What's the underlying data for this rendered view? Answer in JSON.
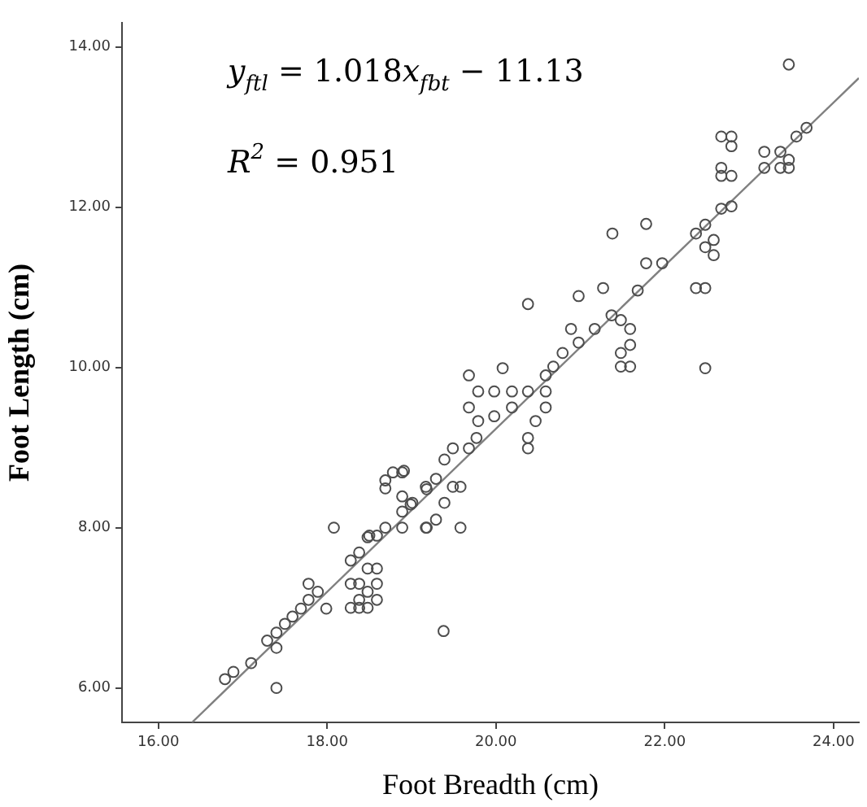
{
  "chart_data": {
    "type": "scatter",
    "xlabel": "Foot Breadth (cm)",
    "ylabel": "Foot Length (cm)",
    "annotations": [
      "y$_{ftl}$ = 1.018x$_{fbt}$ − 11.13",
      "R$^{2}$ = 0.951"
    ],
    "xlim": [
      15.57,
      24.3
    ],
    "ylim": [
      5.57,
      14.3
    ],
    "xticks": [
      {
        "value": 16,
        "label": "16.00"
      },
      {
        "value": 18,
        "label": "18.00"
      },
      {
        "value": 20,
        "label": "20.00"
      },
      {
        "value": 22,
        "label": "22.00"
      },
      {
        "value": 24,
        "label": "24.00"
      }
    ],
    "yticks": [
      {
        "value": 6,
        "label": "6.00"
      },
      {
        "value": 8,
        "label": "8.00"
      },
      {
        "value": 10,
        "label": "10.00"
      },
      {
        "value": 12,
        "label": "12.00"
      },
      {
        "value": 14,
        "label": "14.00"
      }
    ],
    "grid": false,
    "legend": false,
    "marker": "circle",
    "series": [
      {
        "color": "#4d4d4d",
        "x": [
          16.79,
          16.89,
          17.1,
          17.29,
          17.4,
          17.4,
          17.4,
          17.5,
          17.59,
          17.69,
          17.78,
          17.78,
          17.89,
          17.99,
          18.08,
          18.28,
          18.28,
          18.28,
          18.38,
          18.38,
          18.38,
          18.38,
          18.48,
          18.48,
          18.48,
          18.48,
          18.59,
          18.59,
          18.59,
          18.59,
          18.69,
          18.69,
          18.69,
          18.78,
          18.89,
          18.89,
          18.89,
          18.89,
          18.99,
          19.18,
          19.18,
          18.5,
          18.91,
          19.01,
          19.17,
          19.17,
          19.29,
          19.29,
          19.39,
          19.39,
          19.49,
          19.49,
          19.58,
          19.58,
          19.68,
          19.77,
          19.79,
          19.68,
          19.68,
          19.79,
          19.98,
          19.98,
          20.08,
          20.19,
          20.19,
          20.38,
          20.38,
          20.38,
          20.38,
          20.47,
          20.59,
          20.59,
          20.59,
          20.68,
          20.79,
          20.89,
          20.98,
          20.98,
          21.17,
          21.27,
          21.37,
          21.48,
          21.48,
          21.59,
          21.59,
          21.59,
          21.68,
          21.38,
          21.78,
          21.78,
          21.97,
          22.37,
          22.48,
          22.48,
          22.58,
          22.58,
          22.37,
          22.48,
          22.48,
          22.67,
          22.79,
          22.67,
          22.67,
          22.79,
          22.67,
          22.79,
          22.79,
          23.18,
          23.18,
          23.37,
          23.37,
          23.47,
          23.47,
          23.56,
          23.68,
          23.47,
          19.38,
          21.48
        ],
        "values": [
          6.11,
          6.2,
          6.31,
          6.59,
          6.69,
          6.5,
          6.0,
          6.8,
          6.89,
          6.99,
          7.1,
          7.3,
          7.2,
          6.99,
          8.0,
          7.3,
          7.0,
          7.59,
          7.69,
          7.3,
          7.1,
          7.0,
          7.88,
          7.49,
          7.2,
          7.0,
          7.49,
          7.3,
          7.1,
          7.9,
          8.0,
          8.59,
          8.49,
          8.69,
          8.69,
          8.39,
          8.2,
          8.0,
          8.29,
          8.0,
          8.48,
          7.9,
          8.71,
          8.31,
          8.51,
          8.0,
          8.1,
          8.61,
          8.85,
          8.31,
          8.99,
          8.51,
          8.0,
          8.51,
          8.99,
          9.12,
          9.33,
          9.5,
          9.9,
          9.7,
          9.7,
          9.39,
          9.99,
          9.7,
          9.5,
          9.7,
          10.79,
          8.99,
          9.12,
          9.33,
          9.7,
          9.5,
          9.9,
          10.01,
          10.18,
          10.48,
          10.89,
          10.31,
          10.48,
          10.99,
          10.65,
          10.59,
          10.18,
          10.48,
          10.28,
          10.01,
          10.96,
          11.67,
          11.79,
          11.3,
          11.3,
          11.67,
          11.78,
          11.5,
          11.4,
          11.59,
          10.99,
          10.99,
          9.99,
          11.98,
          12.01,
          12.49,
          12.39,
          12.39,
          12.88,
          12.88,
          12.76,
          12.49,
          12.69,
          12.69,
          12.49,
          12.49,
          12.59,
          12.88,
          12.99,
          13.78,
          6.71,
          10.01
        ]
      },
      {
        "type": "line",
        "marker": "none",
        "color": "#808080",
        "x": [
          16.4,
          24.3
        ],
        "values": [
          5.57,
          13.61
        ]
      }
    ]
  }
}
